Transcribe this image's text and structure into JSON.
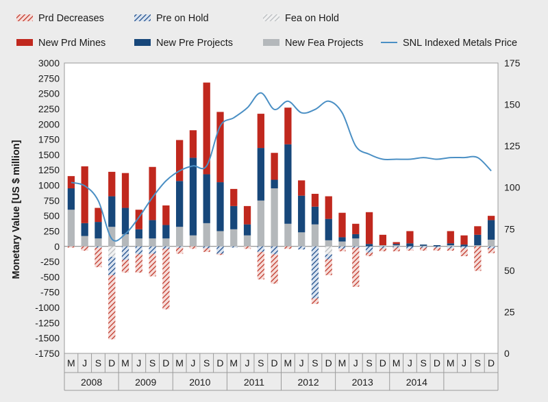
{
  "chart_data": {
    "type": "bar",
    "title": "",
    "ylabel": "Monetary Value [US $ million]",
    "y2label": "",
    "ylim": [
      -1750,
      3000
    ],
    "y2lim": [
      0,
      175
    ],
    "yticks": [
      "3000",
      "2750",
      "2500",
      "2250",
      "2000",
      "1750",
      "1500",
      "1250",
      "1000",
      "750",
      "500",
      "250",
      "0",
      "-250",
      "-500",
      "-750",
      "-1000",
      "-1250",
      "-1500",
      "-1750"
    ],
    "y2ticks": [
      "175",
      "150",
      "125",
      "100",
      "75",
      "50",
      "25",
      "0"
    ],
    "categories": [
      "M",
      "J",
      "S",
      "D",
      "M",
      "J",
      "S",
      "D",
      "M",
      "J",
      "S",
      "D",
      "M",
      "J",
      "S",
      "D",
      "M",
      "J",
      "S",
      "D",
      "M",
      "J",
      "S",
      "D",
      "M",
      "J",
      "S",
      "D",
      "M",
      "J",
      "S",
      "D"
    ],
    "years": [
      "2008",
      "2009",
      "2010",
      "2011",
      "2012",
      "2013",
      "2014"
    ],
    "legend": {
      "placement": "top",
      "items": [
        {
          "key": "prd_dec",
          "label": "Prd Decreases",
          "style": "hatch",
          "color": "#c0392b"
        },
        {
          "key": "pre_hold",
          "label": "Pre on Hold",
          "style": "hatch",
          "color": "#1f4e8c"
        },
        {
          "key": "fea_hold",
          "label": "Fea on Hold",
          "style": "hatch",
          "color": "#b8bcbf"
        },
        {
          "key": "prd_new",
          "label": "New Prd Mines",
          "style": "solid",
          "color": "#c0281e"
        },
        {
          "key": "pre_new",
          "label": "New Pre Projects",
          "style": "solid",
          "color": "#17477a"
        },
        {
          "key": "fea_new",
          "label": "New Fea Projects",
          "style": "solid",
          "color": "#b4b8bb"
        },
        {
          "key": "snl",
          "label": "SNL Indexed Metals Price",
          "style": "line",
          "color": "#4a8fc4"
        }
      ]
    },
    "series": [
      {
        "name": "New Fea Projects",
        "key": "fea_new",
        "stack": "pos",
        "values": [
          600,
          170,
          130,
          320,
          200,
          130,
          130,
          130,
          320,
          180,
          380,
          250,
          280,
          180,
          750,
          950,
          370,
          230,
          360,
          100,
          80,
          130,
          0,
          20,
          20,
          0,
          10,
          0,
          20,
          0,
          20,
          110
        ]
      },
      {
        "name": "New Pre Projects",
        "key": "pre_new",
        "stack": "pos",
        "values": [
          350,
          210,
          270,
          500,
          430,
          150,
          300,
          220,
          750,
          1270,
          800,
          800,
          380,
          180,
          860,
          140,
          1300,
          600,
          290,
          350,
          70,
          70,
          40,
          0,
          20,
          50,
          20,
          20,
          30,
          30,
          170,
          320
        ]
      },
      {
        "name": "New Prd Mines",
        "key": "prd_new",
        "stack": "pos",
        "values": [
          200,
          930,
          230,
          400,
          570,
          320,
          870,
          320,
          670,
          450,
          1500,
          1150,
          280,
          300,
          560,
          440,
          600,
          250,
          210,
          370,
          400,
          170,
          520,
          170,
          30,
          200,
          0,
          0,
          200,
          150,
          140,
          70
        ]
      },
      {
        "name": "Fea on Hold",
        "key": "fea_hold",
        "stack": "neg",
        "values": [
          0,
          0,
          0,
          -170,
          0,
          0,
          0,
          0,
          0,
          0,
          0,
          0,
          0,
          0,
          0,
          0,
          0,
          0,
          0,
          -130,
          0,
          0,
          0,
          0,
          0,
          0,
          0,
          0,
          0,
          0,
          0,
          0
        ]
      },
      {
        "name": "Pre on Hold",
        "key": "pre_hold",
        "stack": "neg",
        "values": [
          0,
          0,
          -20,
          -300,
          -220,
          -130,
          -120,
          -40,
          -20,
          0,
          -30,
          -120,
          -20,
          0,
          -90,
          -130,
          0,
          -50,
          -850,
          -80,
          -40,
          -20,
          -100,
          -30,
          -20,
          -40,
          -20,
          -20,
          -30,
          -30,
          0,
          -30
        ]
      },
      {
        "name": "Prd Decreases",
        "key": "prd_dec",
        "stack": "neg",
        "values": [
          -20,
          -70,
          -320,
          -1050,
          -210,
          -300,
          -370,
          -990,
          -100,
          -40,
          -60,
          -20,
          0,
          -40,
          -450,
          -480,
          -40,
          0,
          -90,
          -260,
          -40,
          -640,
          -60,
          -50,
          -60,
          -30,
          -50,
          -50,
          -40,
          -130,
          -400,
          -80
        ]
      },
      {
        "name": "SNL Indexed Metals Price",
        "key": "snl",
        "axis": "right",
        "type": "line",
        "values": [
          103,
          101,
          92,
          69,
          72,
          82,
          94,
          104,
          110,
          113,
          113,
          137,
          142,
          148,
          157,
          147,
          152,
          145,
          147,
          152,
          145,
          125,
          120,
          117,
          117,
          117,
          118,
          117,
          118,
          118,
          118,
          110
        ]
      }
    ]
  }
}
